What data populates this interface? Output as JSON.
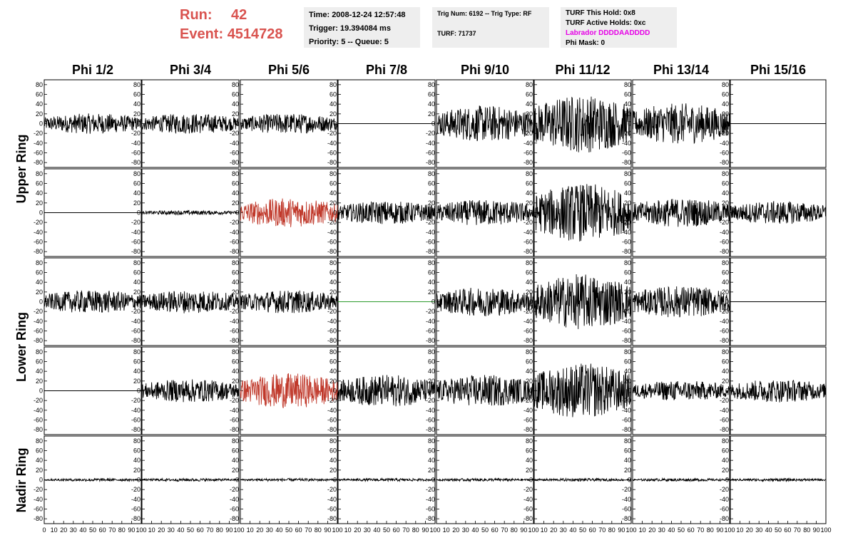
{
  "header": {
    "run_label": "Run:",
    "run_value": "42",
    "event_label": "Event:",
    "event_value": "4514728",
    "time": "Time: 2008-12-24 12:57:48",
    "trigger": "Trigger: 19.394084 ms",
    "priority": "Priority: 5 -- Queue: 5",
    "trig_num": "Trig Num: 6192 -- Trig Type: RF",
    "turf": "TURF: 71737",
    "turf_this_hold": "TURF This Hold: 0x8",
    "turf_active_holds": "TURF Active Holds: 0xc",
    "labrador": "Labrador DDDDAADDDD",
    "phi_mask": "Phi Mask: 0"
  },
  "colors": {
    "header_red": "#d9534f",
    "labrador": "#e600e6",
    "box_bg": "#eeeeee",
    "trace_default": "#000000",
    "trace_red": "#c0392b",
    "trace_green": "#2e9b2e"
  },
  "chart_data": {
    "type": "line",
    "columns": [
      "Phi 1/2",
      "Phi 3/4",
      "Phi 5/6",
      "Phi 7/8",
      "Phi 9/10",
      "Phi 11/12",
      "Phi 13/14",
      "Phi 15/16"
    ],
    "ring_labels": [
      "Upper Ring",
      "Lower Ring",
      "Nadir Ring"
    ],
    "x_ticks": [
      "0",
      "10",
      "20",
      "30",
      "40",
      "50",
      "60",
      "70",
      "80",
      "90",
      "100"
    ],
    "xlim": [
      0,
      100
    ],
    "y_ticks": [
      80,
      60,
      40,
      20,
      0,
      -20,
      -40,
      -60,
      -80
    ],
    "ylim": [
      -90,
      90
    ],
    "rows": [
      {
        "amplitudes": [
          14,
          14,
          14,
          0,
          25,
          40,
          28,
          0
        ],
        "colors": [
          "default",
          "default",
          "default",
          "default",
          "default",
          "default",
          "default",
          "default"
        ]
      },
      {
        "amplitudes": [
          0,
          3,
          20,
          16,
          18,
          40,
          20,
          16
        ],
        "colors": [
          "default",
          "default",
          "red",
          "default",
          "default",
          "default",
          "default",
          "default"
        ]
      },
      {
        "amplitudes": [
          16,
          16,
          16,
          0,
          20,
          38,
          22,
          0
        ],
        "colors": [
          "default",
          "default",
          "default",
          "green",
          "default",
          "default",
          "default",
          "default"
        ]
      },
      {
        "amplitudes": [
          0,
          16,
          24,
          22,
          22,
          38,
          14,
          16
        ],
        "colors": [
          "default",
          "default",
          "red",
          "default",
          "default",
          "default",
          "default",
          "default"
        ]
      },
      {
        "amplitudes": [
          2,
          2,
          2,
          2,
          2,
          2,
          2,
          2
        ],
        "colors": [
          "default",
          "default",
          "default",
          "default",
          "default",
          "default",
          "default",
          "default"
        ]
      }
    ]
  }
}
